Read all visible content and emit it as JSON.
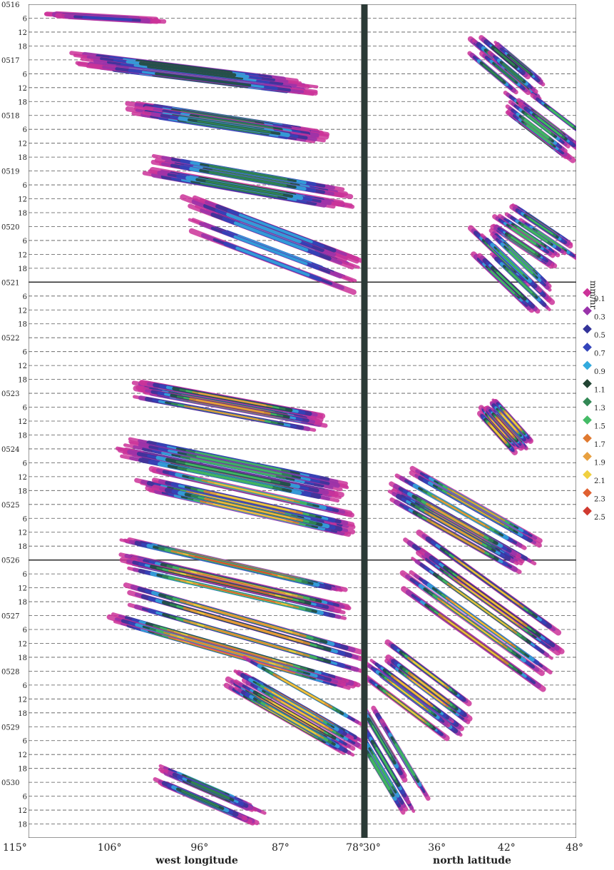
{
  "chart_data": {
    "type": "heatmap",
    "unit": "mm/hr",
    "y_day_labels": [
      "0516",
      "0517",
      "0518",
      "0519",
      "0520",
      "0521",
      "0522",
      "0523",
      "0524",
      "0525",
      "0526",
      "0527",
      "0528",
      "0529",
      "0530"
    ],
    "y_hour_labels": [
      "6",
      "12",
      "18"
    ],
    "panels": [
      {
        "name": "longitude",
        "xlabel": "west longitude",
        "x_ticks": [
          "115°",
          "106°",
          "96°",
          "87°",
          "78°"
        ],
        "x_values": [
          115,
          106,
          96,
          87,
          78
        ],
        "xlim": [
          115,
          78
        ]
      },
      {
        "name": "latitude",
        "xlabel": "north latitude",
        "x_ticks": [
          "30°",
          "36°",
          "42°",
          "48°"
        ],
        "x_values": [
          30,
          36,
          42,
          48
        ],
        "xlim": [
          30,
          48
        ]
      }
    ],
    "colorbar": {
      "levels": [
        "0.1",
        "0.3",
        "0.5",
        "0.7",
        "0.9",
        "1.1",
        "1.3",
        "1.5",
        "1.7",
        "1.9",
        "2.1",
        "2.3",
        "2.5"
      ],
      "colors": [
        "#cc3399",
        "#9933aa",
        "#333399",
        "#3344bb",
        "#33aadd",
        "#224433",
        "#338855",
        "#44bb66",
        "#e07a30",
        "#e8a040",
        "#f0d040",
        "#e06030",
        "#d03a30"
      ]
    },
    "features": [
      {
        "panel": "longitude",
        "day_from": 0.2,
        "day_to": 0.3,
        "x_from": 112,
        "x_to": 101,
        "peak": 0.7
      },
      {
        "panel": "longitude",
        "day_from": 1.0,
        "day_to": 1.5,
        "x_from": 109,
        "x_to": 84,
        "peak": 1.1
      },
      {
        "panel": "longitude",
        "day_from": 1.9,
        "day_to": 2.4,
        "x_from": 103,
        "x_to": 83,
        "peak": 1.3
      },
      {
        "panel": "longitude",
        "day_from": 2.9,
        "day_to": 3.5,
        "x_from": 101,
        "x_to": 80,
        "peak": 1.3
      },
      {
        "panel": "longitude",
        "day_from": 3.8,
        "day_to": 4.9,
        "x_from": 97,
        "x_to": 79,
        "peak": 0.9
      },
      {
        "panel": "longitude",
        "day_from": 6.9,
        "day_to": 7.5,
        "x_from": 103,
        "x_to": 83,
        "peak": 1.9
      },
      {
        "panel": "longitude",
        "day_from": 7.9,
        "day_to": 8.7,
        "x_from": 104,
        "x_to": 80,
        "peak": 1.5
      },
      {
        "panel": "longitude",
        "day_from": 8.6,
        "day_to": 9.4,
        "x_from": 102,
        "x_to": 80,
        "peak": 2.1
      },
      {
        "panel": "longitude",
        "day_from": 9.9,
        "day_to": 10.8,
        "x_from": 104,
        "x_to": 80,
        "peak": 2.5
      },
      {
        "panel": "longitude",
        "day_from": 10.8,
        "day_to": 12.0,
        "x_from": 105,
        "x_to": 79,
        "peak": 2.3
      },
      {
        "panel": "longitude",
        "day_from": 12.0,
        "day_to": 13.2,
        "x_from": 92,
        "x_to": 79,
        "peak": 2.1
      },
      {
        "panel": "longitude",
        "day_from": 13.9,
        "day_to": 14.6,
        "x_from": 100,
        "x_to": 90,
        "peak": 1.3
      },
      {
        "panel": "latitude",
        "day_from": 0.8,
        "day_to": 1.5,
        "x_from": 40,
        "x_to": 44,
        "peak": 1.3
      },
      {
        "panel": "latitude",
        "day_from": 1.8,
        "day_to": 2.6,
        "x_from": 43,
        "x_to": 48,
        "peak": 1.5
      },
      {
        "panel": "latitude",
        "day_from": 3.8,
        "day_to": 4.5,
        "x_from": 42,
        "x_to": 47,
        "peak": 1.5
      },
      {
        "panel": "latitude",
        "day_from": 4.3,
        "day_to": 5.3,
        "x_from": 40,
        "x_to": 45,
        "peak": 1.5
      },
      {
        "panel": "latitude",
        "day_from": 7.3,
        "day_to": 8.0,
        "x_from": 40,
        "x_to": 43,
        "peak": 2.1
      },
      {
        "panel": "latitude",
        "day_from": 8.6,
        "day_to": 9.9,
        "x_from": 33,
        "x_to": 44,
        "peak": 1.9
      },
      {
        "panel": "latitude",
        "day_from": 10.0,
        "day_to": 11.8,
        "x_from": 34,
        "x_to": 46,
        "peak": 2.1
      },
      {
        "panel": "latitude",
        "day_from": 11.8,
        "day_to": 12.9,
        "x_from": 31,
        "x_to": 38,
        "peak": 2.1
      },
      {
        "panel": "latitude",
        "day_from": 12.8,
        "day_to": 14.2,
        "x_from": 30,
        "x_to": 34,
        "peak": 1.5
      }
    ]
  }
}
